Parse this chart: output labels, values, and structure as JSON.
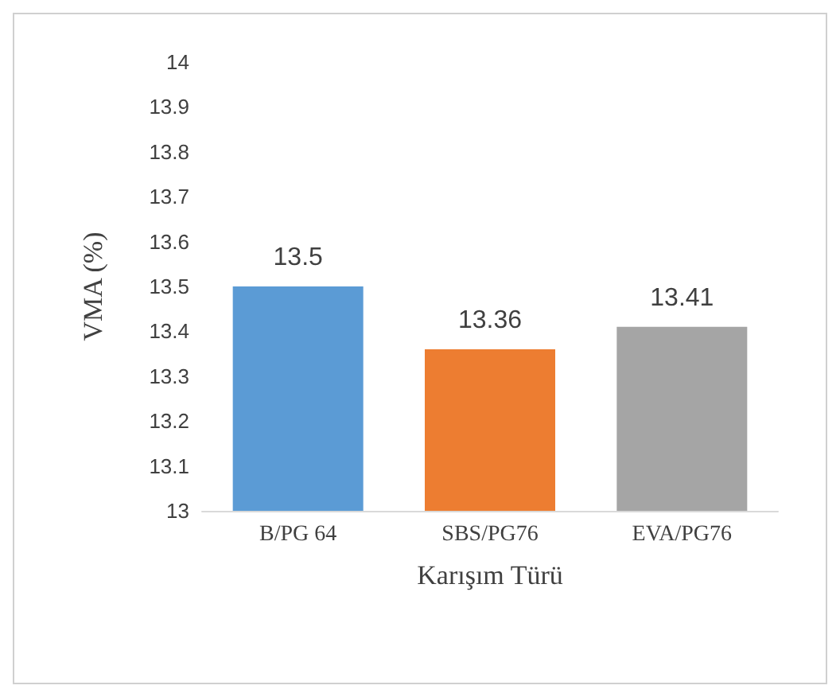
{
  "chart_data": {
    "type": "bar",
    "xlabel": "Karışım Türü",
    "ylabel": "VMA (%)",
    "categories": [
      "B/PG 64",
      "SBS/PG76",
      "EVA/PG76"
    ],
    "values": [
      13.5,
      13.36,
      13.41
    ],
    "colors": [
      "#5b9bd5",
      "#ed7d31",
      "#a5a5a5"
    ],
    "ylim": [
      13,
      14
    ],
    "yticks": [
      13,
      13.1,
      13.2,
      13.3,
      13.4,
      13.5,
      13.6,
      13.7,
      13.8,
      13.9,
      14
    ],
    "data_labels": true
  }
}
